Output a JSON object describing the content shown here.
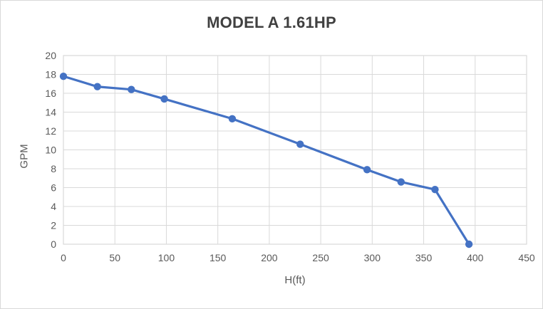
{
  "chart_data": {
    "type": "line",
    "title": "MODEL A 1.61HP",
    "xlabel": "H(ft)",
    "ylabel": "GPM",
    "x": [
      0,
      33,
      66,
      98,
      164,
      230,
      295,
      328,
      361,
      394
    ],
    "y": [
      17.8,
      16.7,
      16.4,
      15.4,
      13.3,
      10.6,
      7.9,
      6.6,
      5.8,
      0
    ],
    "xlim": [
      0,
      450
    ],
    "ylim": [
      0,
      20
    ],
    "xticks": [
      0,
      50,
      100,
      150,
      200,
      250,
      300,
      350,
      400,
      450
    ],
    "yticks": [
      0,
      2,
      4,
      6,
      8,
      10,
      12,
      14,
      16,
      18,
      20
    ],
    "grid": true,
    "legend": false,
    "series_color": "#4472c4",
    "grid_color": "#d9d9d9",
    "tick_color": "#595959",
    "title_color": "#404040",
    "axis_title_color": "#595959",
    "background": "#ffffff",
    "frame_border_color": "#d9d9d9"
  }
}
